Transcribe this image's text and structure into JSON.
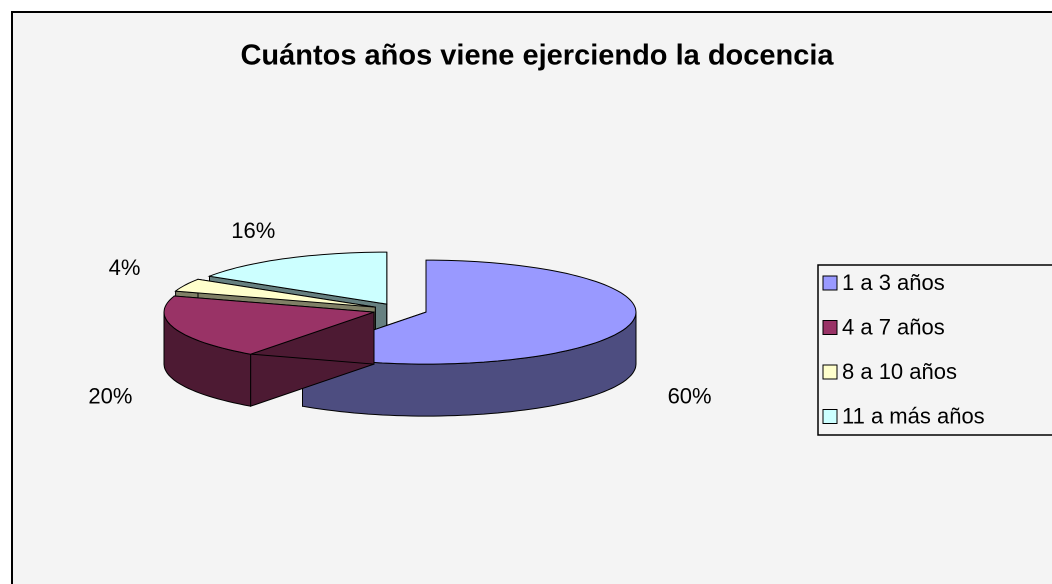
{
  "chart_data": {
    "type": "pie",
    "title": "Cuántos años viene ejerciendo la docencia",
    "categories": [
      "1 a 3 años",
      "4 a 7 años",
      "8 a 10 años",
      "11 a más años"
    ],
    "values": [
      60,
      20,
      4,
      16
    ],
    "value_labels": [
      "60%",
      "20%",
      "4%",
      "16%"
    ],
    "colors": [
      "#9999ff",
      "#993366",
      "#ffffcc",
      "#ccffff"
    ],
    "legend": "right"
  }
}
